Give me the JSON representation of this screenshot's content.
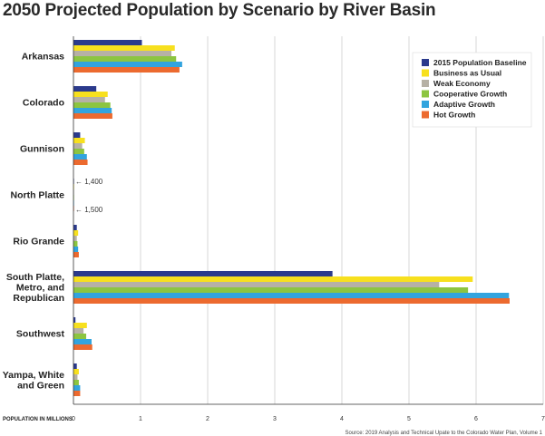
{
  "chart_data": {
    "type": "bar",
    "orientation": "horizontal",
    "title": "2050 Projected Population by Scenario by River Basin",
    "xlabel": "POPULATION IN MILLIONS",
    "xlim": [
      0,
      7
    ],
    "xticks": [
      "0",
      "1",
      "2",
      "3",
      "4",
      "5",
      "6",
      "7"
    ],
    "grid": true,
    "legend_position": "top-right",
    "categories": [
      [
        "Arkansas"
      ],
      [
        "Colorado"
      ],
      [
        "Gunnison"
      ],
      [
        "North Platte"
      ],
      [
        "Rio Grande"
      ],
      [
        "South Platte,",
        "Metro, and",
        "Republican"
      ],
      [
        "Southwest"
      ],
      [
        "Yampa, White",
        "and Green"
      ]
    ],
    "series": [
      {
        "name": "2015 Population Baseline",
        "color": "#2b3a8c",
        "values": [
          1.02,
          0.34,
          0.1,
          0.0014,
          0.05,
          3.86,
          0.03,
          0.05
        ]
      },
      {
        "name": "Business as Usual",
        "color": "#f7e01e",
        "values": [
          1.51,
          0.51,
          0.17,
          0.0014,
          0.07,
          5.95,
          0.2,
          0.08
        ]
      },
      {
        "name": "Weak Economy",
        "color": "#b6b1a5",
        "values": [
          1.46,
          0.47,
          0.13,
          0.0014,
          0.05,
          5.45,
          0.15,
          0.06
        ]
      },
      {
        "name": "Cooperative Growth",
        "color": "#8cc540",
        "values": [
          1.53,
          0.55,
          0.16,
          0.0014,
          0.06,
          5.88,
          0.19,
          0.08
        ]
      },
      {
        "name": "Adaptive Growth",
        "color": "#32a4de",
        "values": [
          1.62,
          0.57,
          0.2,
          0.0015,
          0.07,
          6.49,
          0.27,
          0.1
        ]
      },
      {
        "name": "Hot Growth",
        "color": "#ec6a2f",
        "values": [
          1.58,
          0.58,
          0.21,
          0.0015,
          0.08,
          6.5,
          0.28,
          0.1
        ]
      }
    ],
    "annotations": [
      "1,400",
      "1,500"
    ],
    "source": "Source: 2019 Analysis and Technical Upate to the Colorado Water Plan, Volume 1"
  }
}
